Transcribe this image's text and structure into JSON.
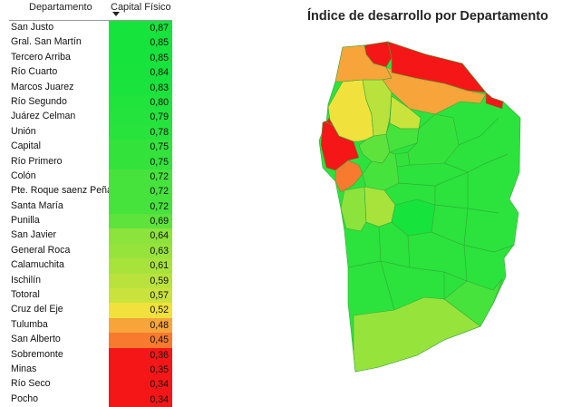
{
  "table": {
    "col_department": "Departamento",
    "col_capital": "Capital Físico",
    "rows": [
      {
        "name": "San Justo",
        "value": "0,87",
        "color": "#16e33c"
      },
      {
        "name": "Gral. San Martín",
        "value": "0,85",
        "color": "#16e33c"
      },
      {
        "name": "Tercero Arriba",
        "value": "0,85",
        "color": "#16e33c"
      },
      {
        "name": "Río Cuarto",
        "value": "0,84",
        "color": "#17e33c"
      },
      {
        "name": "Marcos Juarez",
        "value": "0,83",
        "color": "#19e33c"
      },
      {
        "name": "Río Segundo",
        "value": "0,80",
        "color": "#20e33c"
      },
      {
        "name": "Juárez Celman",
        "value": "0,79",
        "color": "#24e33c"
      },
      {
        "name": "Unión",
        "value": "0,78",
        "color": "#28e33c"
      },
      {
        "name": "Capital",
        "value": "0,75",
        "color": "#33e33c"
      },
      {
        "name": "Río Primero",
        "value": "0,75",
        "color": "#33e33c"
      },
      {
        "name": "Colón",
        "value": "0,72",
        "color": "#45e33c"
      },
      {
        "name": "Pte. Roque saenz Peña",
        "value": "0,72",
        "color": "#45e33c"
      },
      {
        "name": "Santa María",
        "value": "0,72",
        "color": "#46e33c"
      },
      {
        "name": "Punilla",
        "value": "0,69",
        "color": "#5de33c"
      },
      {
        "name": "San Javier",
        "value": "0,64",
        "color": "#8ce33c"
      },
      {
        "name": "General Roca",
        "value": "0,63",
        "color": "#96e33c"
      },
      {
        "name": "Calamuchita",
        "value": "0,61",
        "color": "#a8e33c"
      },
      {
        "name": "Ischilín",
        "value": "0,59",
        "color": "#b9e33c"
      },
      {
        "name": "Totoral",
        "value": "0,57",
        "color": "#c9e33c"
      },
      {
        "name": "Cruz del Eje",
        "value": "0,52",
        "color": "#f0e13c"
      },
      {
        "name": "Tulumba",
        "value": "0,48",
        "color": "#f7a43a"
      },
      {
        "name": "San Alberto",
        "value": "0,45",
        "color": "#f77a2e"
      },
      {
        "name": "Sobremonte",
        "value": "0,36",
        "color": "#f51717"
      },
      {
        "name": "Minas",
        "value": "0,35",
        "color": "#f51717"
      },
      {
        "name": "Río Seco",
        "value": "0,34",
        "color": "#f51717"
      },
      {
        "name": "Pocho",
        "value": "0,34",
        "color": "#f51717"
      }
    ]
  },
  "map": {
    "title": "Índice de desarrollo por Departamento"
  }
}
